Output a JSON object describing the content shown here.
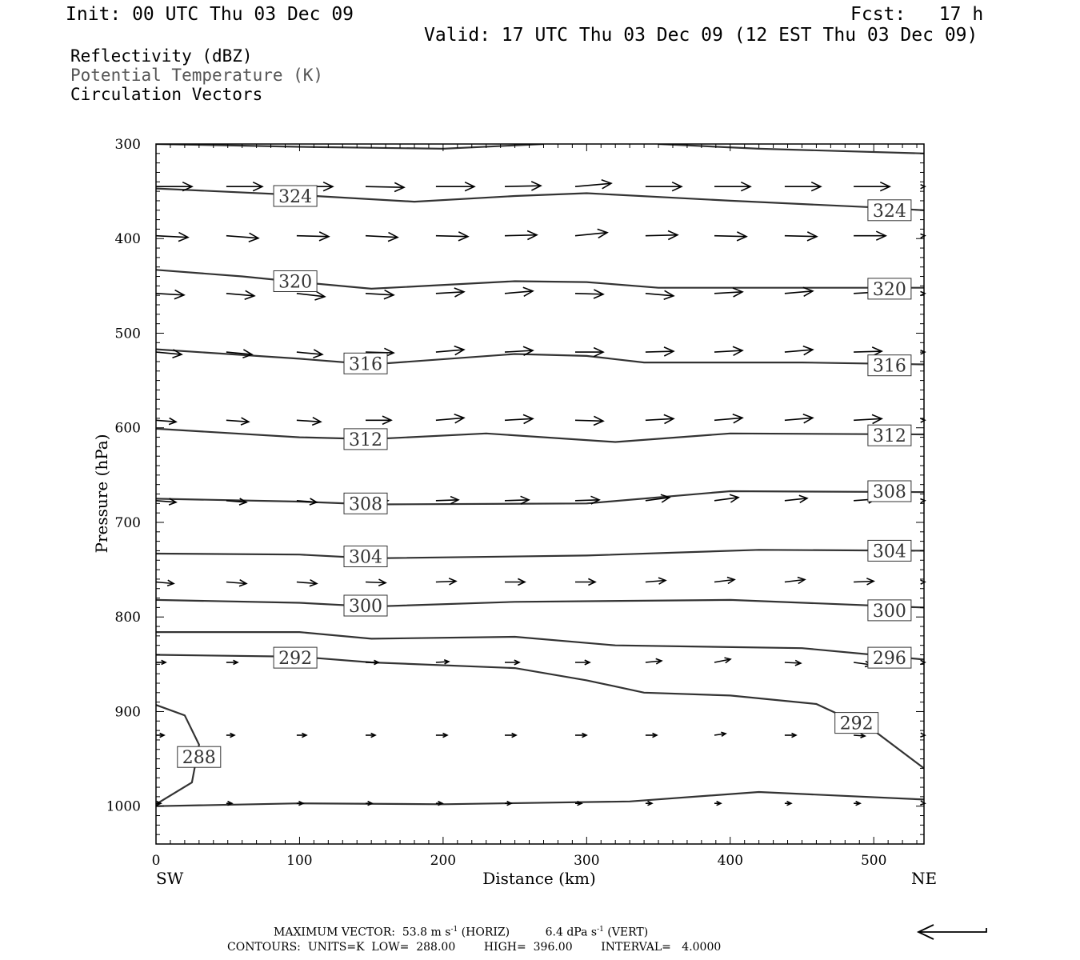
{
  "header": {
    "init": "Init: 00 UTC Thu 03 Dec 09",
    "fcst_label": "Fcst:",
    "fcst_value": "17 h",
    "valid": "Valid: 17 UTC Thu 03 Dec 09 (12 EST Thu 03 Dec 09)"
  },
  "legend": {
    "reflectivity": "Reflectivity (dBZ)",
    "theta": "Potential Temperature (K)",
    "vectors": "Circulation Vectors"
  },
  "footer": {
    "max_label": "MAXIMUM VECTOR:",
    "max_horiz_value": "53.8",
    "max_horiz_units": "m s",
    "max_horiz_sup": "-1",
    "max_horiz_tag": "(HORIZ)",
    "max_vert_value": "6.4",
    "max_vert_units": "dPa s",
    "max_vert_sup": "-1",
    "max_vert_tag": "(VERT)",
    "contours": "CONTOURS:",
    "units": "UNITS=K",
    "low_label": "LOW=",
    "low_value": "288.00",
    "high_label": "HIGH=",
    "high_value": "396.00",
    "interval_label": "INTERVAL=",
    "interval_value": "4.0000"
  },
  "chart_data": {
    "type": "line",
    "xlabel": "Distance (km)",
    "ylabel": "Pressure (hPa)",
    "xlim": [
      0,
      535
    ],
    "ylim": [
      1040,
      300
    ],
    "x_ticks": [
      0,
      100,
      200,
      300,
      400,
      500
    ],
    "y_ticks": [
      300,
      400,
      500,
      600,
      700,
      800,
      900,
      1000
    ],
    "x_endpoint_labels": {
      "left": "SW",
      "right": "NE"
    },
    "grid": false,
    "series": [
      {
        "label_value": "324",
        "points": [
          [
            0,
            347
          ],
          [
            100,
            354
          ],
          [
            180,
            361
          ],
          [
            250,
            355
          ],
          [
            300,
            352
          ],
          [
            400,
            360
          ],
          [
            500,
            367
          ],
          [
            535,
            370
          ]
        ],
        "labels": [
          [
            97,
            355
          ],
          [
            511,
            370
          ]
        ]
      },
      {
        "label_value": "320",
        "points": [
          [
            0,
            433
          ],
          [
            60,
            440
          ],
          [
            100,
            446
          ],
          [
            150,
            453
          ],
          [
            250,
            445
          ],
          [
            300,
            446
          ],
          [
            350,
            452
          ],
          [
            535,
            452
          ]
        ],
        "labels": [
          [
            97,
            445
          ],
          [
            511,
            453
          ]
        ]
      },
      {
        "label_value": "316",
        "points": [
          [
            0,
            517
          ],
          [
            100,
            527
          ],
          [
            150,
            533
          ],
          [
            250,
            522
          ],
          [
            300,
            524
          ],
          [
            340,
            531
          ],
          [
            450,
            531
          ],
          [
            535,
            533
          ]
        ],
        "labels": [
          [
            146,
            532
          ],
          [
            511,
            534
          ]
        ]
      },
      {
        "label_value": "312",
        "points": [
          [
            0,
            601
          ],
          [
            100,
            610
          ],
          [
            150,
            612
          ],
          [
            230,
            606
          ],
          [
            320,
            615
          ],
          [
            400,
            606
          ],
          [
            535,
            607
          ]
        ],
        "labels": [
          [
            146,
            612
          ],
          [
            511,
            608
          ]
        ]
      },
      {
        "label_value": "308",
        "points": [
          [
            0,
            675
          ],
          [
            100,
            678
          ],
          [
            150,
            681
          ],
          [
            300,
            680
          ],
          [
            400,
            667
          ],
          [
            535,
            668
          ]
        ],
        "labels": [
          [
            146,
            680
          ],
          [
            511,
            667
          ]
        ]
      },
      {
        "label_value": "304",
        "points": [
          [
            0,
            733
          ],
          [
            100,
            734
          ],
          [
            150,
            738
          ],
          [
            300,
            735
          ],
          [
            420,
            729
          ],
          [
            535,
            730
          ]
        ],
        "labels": [
          [
            146,
            736
          ],
          [
            511,
            730
          ]
        ]
      },
      {
        "label_value": "300",
        "points": [
          [
            0,
            782
          ],
          [
            100,
            785
          ],
          [
            150,
            789
          ],
          [
            250,
            784
          ],
          [
            400,
            782
          ],
          [
            535,
            790
          ]
        ],
        "labels": [
          [
            146,
            788
          ],
          [
            511,
            793
          ]
        ]
      },
      {
        "label_value": "296",
        "points": [
          [
            0,
            816
          ],
          [
            100,
            816
          ],
          [
            150,
            823
          ],
          [
            250,
            821
          ],
          [
            320,
            830
          ],
          [
            450,
            833
          ],
          [
            500,
            840
          ],
          [
            535,
            845
          ]
        ],
        "labels": [
          [
            511,
            843
          ]
        ]
      },
      {
        "label_value": "292",
        "points": [
          [
            0,
            840
          ],
          [
            100,
            842
          ],
          [
            150,
            848
          ],
          [
            250,
            854
          ],
          [
            300,
            867
          ],
          [
            340,
            880
          ],
          [
            400,
            883
          ],
          [
            460,
            892
          ],
          [
            500,
            920
          ],
          [
            535,
            960
          ]
        ],
        "labels": [
          [
            97,
            843
          ],
          [
            488,
            912
          ]
        ]
      },
      {
        "label_value": "288",
        "points": [
          [
            0,
            893
          ],
          [
            20,
            904
          ],
          [
            30,
            935
          ],
          [
            25,
            975
          ],
          [
            0,
            998
          ]
        ],
        "labels": [
          [
            30,
            948
          ]
        ]
      },
      {
        "label_value": "",
        "points": [
          [
            0,
            300
          ],
          [
            100,
            303
          ],
          [
            200,
            305
          ],
          [
            270,
            300
          ]
        ],
        "labels": []
      },
      {
        "label_value": "",
        "points": [
          [
            350,
            300
          ],
          [
            420,
            305
          ],
          [
            535,
            310
          ]
        ],
        "labels": []
      },
      {
        "label_value": "",
        "points": [
          [
            0,
            1000
          ],
          [
            100,
            997
          ],
          [
            200,
            998
          ],
          [
            330,
            995
          ],
          [
            420,
            985
          ],
          [
            535,
            993
          ]
        ],
        "labels": []
      }
    ],
    "vectors": {
      "x": [
        0,
        49,
        98,
        146,
        195,
        243,
        292,
        341,
        389,
        438,
        486,
        535
      ],
      "rows": [
        {
          "p": 345,
          "u": [
            45,
            45,
            45,
            48,
            48,
            45,
            45,
            45,
            45,
            45,
            45,
            50
          ],
          "w": [
            0,
            0,
            0,
            1,
            0,
            -1,
            -4,
            0,
            0,
            0,
            0,
            0
          ]
        },
        {
          "p": 397,
          "u": [
            40,
            40,
            40,
            40,
            40,
            40,
            40,
            40,
            40,
            40,
            40,
            40
          ],
          "w": [
            2,
            3,
            1,
            2,
            1,
            -1,
            -4,
            -1,
            1,
            1,
            0,
            -2
          ]
        },
        {
          "p": 458,
          "u": [
            35,
            35,
            35,
            35,
            35,
            35,
            35,
            35,
            35,
            35,
            35,
            35
          ],
          "w": [
            2,
            3,
            4,
            2,
            -2,
            -3,
            1,
            3,
            -2,
            -3,
            -2,
            -1
          ]
        },
        {
          "p": 520,
          "u": [
            32,
            32,
            32,
            35,
            35,
            35,
            35,
            35,
            35,
            35,
            35,
            35
          ],
          "w": [
            3,
            3,
            3,
            1,
            -3,
            -2,
            0,
            -1,
            -2,
            -3,
            -1,
            -1
          ]
        },
        {
          "p": 592,
          "u": [
            25,
            28,
            30,
            32,
            35,
            35,
            35,
            35,
            35,
            35,
            35,
            35
          ],
          "w": [
            2,
            2,
            2,
            0,
            -3,
            -2,
            1,
            -2,
            -3,
            -3,
            -2,
            -2
          ]
        },
        {
          "p": 677,
          "u": [
            25,
            25,
            25,
            28,
            28,
            30,
            30,
            30,
            30,
            28,
            28,
            28
          ],
          "w": [
            2,
            2,
            2,
            0,
            -1,
            -1,
            -1,
            -4,
            -4,
            -3,
            -2,
            -2
          ]
        },
        {
          "p": 763,
          "u": [
            22,
            25,
            25,
            25,
            25,
            25,
            25,
            25,
            25,
            25,
            25,
            25
          ],
          "w": [
            2,
            2,
            2,
            1,
            -1,
            0,
            0,
            -2,
            -3,
            -3,
            -1,
            -1
          ]
        },
        {
          "p": 848,
          "u": [
            12,
            14,
            14,
            16,
            16,
            18,
            18,
            20,
            20,
            20,
            22,
            22
          ],
          "w": [
            0,
            0,
            0,
            0,
            -1,
            0,
            0,
            -2,
            -4,
            1,
            3,
            0
          ]
        },
        {
          "p": 925,
          "u": [
            10,
            10,
            12,
            12,
            14,
            14,
            14,
            14,
            14,
            14,
            14,
            14
          ],
          "w": [
            0,
            0,
            0,
            0,
            0,
            0,
            0,
            0,
            -2,
            0,
            1,
            1
          ]
        },
        {
          "p": 997,
          "u": [
            6,
            7,
            8,
            8,
            8,
            8,
            8,
            8,
            8,
            8,
            8,
            8
          ],
          "w": [
            0,
            0,
            0,
            0,
            0,
            0,
            0,
            0,
            0,
            0,
            0,
            1
          ]
        }
      ],
      "max_vector_arrow": "horizontal pointing left"
    }
  }
}
